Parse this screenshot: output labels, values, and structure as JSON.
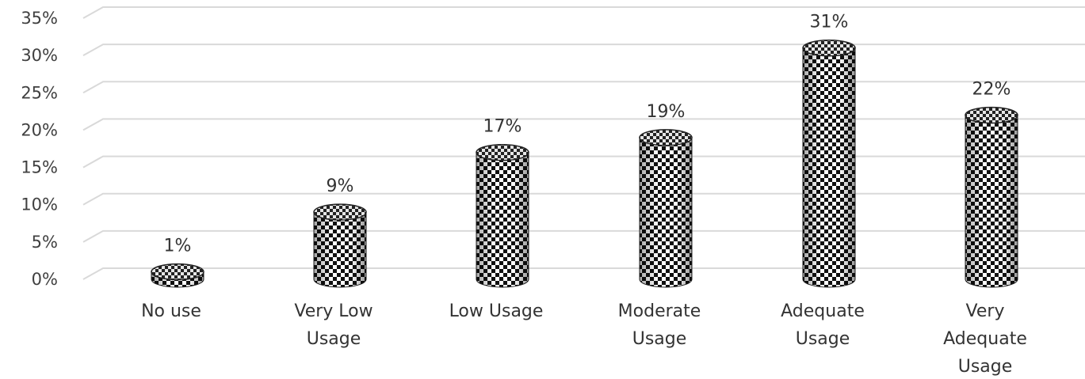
{
  "chart_data": {
    "type": "bar",
    "categories": [
      "No use",
      "Very Low Usage",
      "Low Usage",
      "Moderate Usage",
      "Adequate Usage",
      "Very Adequate Usage"
    ],
    "category_label_lines": [
      [
        "No use"
      ],
      [
        "Very Low",
        "Usage"
      ],
      [
        "Low Usage"
      ],
      [
        "Moderate",
        "Usage"
      ],
      [
        "Adequate",
        "Usage"
      ],
      [
        "Very",
        "Adequate",
        "Usage"
      ]
    ],
    "values": [
      1,
      9,
      17,
      19,
      31,
      22
    ],
    "data_labels": [
      "1%",
      "9%",
      "17%",
      "19%",
      "31%",
      "22%"
    ],
    "y_ticks": [
      "0%",
      "5%",
      "10%",
      "15%",
      "20%",
      "25%",
      "30%",
      "35%"
    ],
    "ylim": [
      0,
      35
    ],
    "grid": true,
    "bar_style": "3d cylinders, black-and-white checkered pattern"
  }
}
